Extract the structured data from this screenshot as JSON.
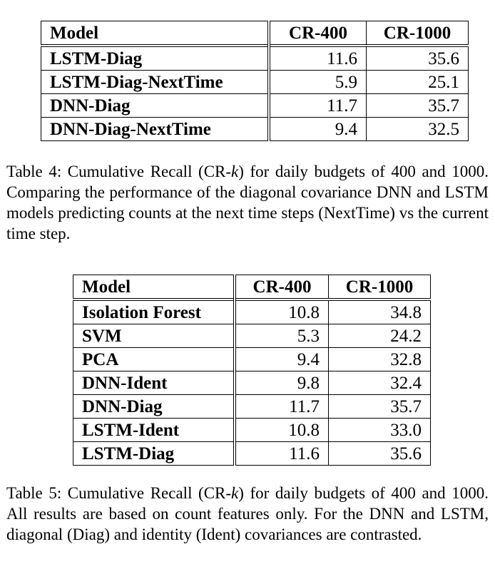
{
  "table4": {
    "headers": [
      "Model",
      "CR-400",
      "CR-1000"
    ],
    "rows": [
      [
        "LSTM-Diag",
        "11.6",
        "35.6"
      ],
      [
        "LSTM-Diag-NextTime",
        "5.9",
        "25.1"
      ],
      [
        "DNN-Diag",
        "11.7",
        "35.7"
      ],
      [
        "DNN-Diag-NextTime",
        "9.4",
        "32.5"
      ]
    ],
    "caption": {
      "pre": "Table 4: Cumulative Recall (CR-",
      "k": "k",
      "post": ") for daily budgets of 400 and 1000. Comparing the performance of the diagonal covariance DNN and LSTM models predicting counts at the next time steps (NextTime) vs the current time step."
    }
  },
  "table5": {
    "headers": [
      "Model",
      "CR-400",
      "CR-1000"
    ],
    "rows": [
      [
        "Isolation Forest",
        "10.8",
        "34.8"
      ],
      [
        "SVM",
        "5.3",
        "24.2"
      ],
      [
        "PCA",
        "9.4",
        "32.8"
      ],
      [
        "DNN-Ident",
        "9.8",
        "32.4"
      ],
      [
        "DNN-Diag",
        "11.7",
        "35.7"
      ],
      [
        "LSTM-Ident",
        "10.8",
        "33.0"
      ],
      [
        "LSTM-Diag",
        "11.6",
        "35.6"
      ]
    ],
    "caption": {
      "pre": "Table 5: Cumulative Recall (CR-",
      "k": "k",
      "post": ") for daily budgets of 400 and 1000. All results are based on count features only. For the DNN and LSTM, diagonal (Diag) and identity (Ident) covariances are contrasted."
    }
  }
}
